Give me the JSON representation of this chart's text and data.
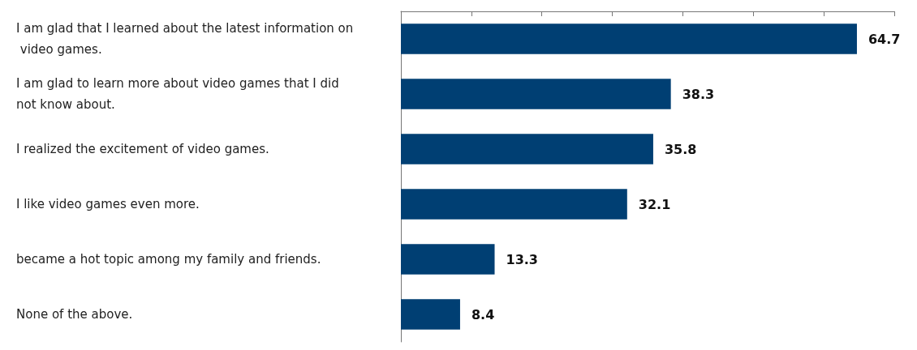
{
  "chart_data": {
    "type": "bar",
    "orientation": "horizontal",
    "categories": [
      "I am glad that I learned about the latest information on video games.",
      "I am glad to learn more about video games that I did not know about.",
      "I realized the excitement of video games.",
      "I like video games even more.",
      "became a hot topic among my family and friends.",
      "None of the above."
    ],
    "values": [
      64.7,
      38.3,
      35.8,
      32.1,
      13.3,
      8.4
    ],
    "color": "#003f73",
    "xlim": [
      0,
      70
    ],
    "xticks": [
      {
        "value": 0,
        "label": null
      },
      {
        "value": 10,
        "label": null
      },
      {
        "value": 20,
        "label": null
      },
      {
        "value": 30,
        "label": null
      },
      {
        "value": 40,
        "label": null
      },
      {
        "value": 50,
        "label": null
      },
      {
        "value": 60,
        "label": null
      },
      {
        "value": 70,
        "label": null
      }
    ],
    "tick_labels": "y",
    "data_labels": true
  }
}
